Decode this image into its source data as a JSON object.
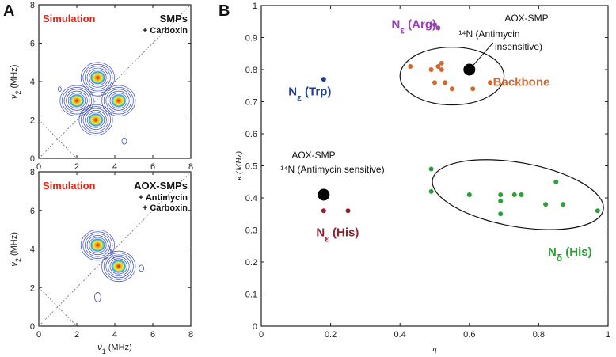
{
  "chart_data": [
    {
      "panel": "A",
      "type": "contour",
      "title": "Simulation",
      "sample": "SMPs",
      "treatment": [
        "+ Carboxin"
      ],
      "xlabel": "ν1 (MHz)",
      "ylabel": "ν2 (MHz)",
      "xlim": [
        0,
        8
      ],
      "ylim": [
        0,
        8
      ],
      "xticks": [
        0,
        2,
        4,
        6,
        8
      ],
      "yticks": [
        0,
        2,
        4,
        6,
        8
      ],
      "peaks": [
        {
          "x": 3.1,
          "y": 4.2
        },
        {
          "x": 2.0,
          "y": 3.0
        },
        {
          "x": 4.2,
          "y": 3.0
        },
        {
          "x": 3.0,
          "y": 2.0
        }
      ]
    },
    {
      "panel": "A",
      "type": "contour",
      "title": "Simulation",
      "sample": "AOX-SMPs",
      "treatment": [
        "+ Antimycin",
        "+ Carboxin"
      ],
      "xlabel": "ν1 (MHz)",
      "ylabel": "ν2 (MHz)",
      "xlim": [
        0,
        8
      ],
      "ylim": [
        0,
        8
      ],
      "xticks": [
        0,
        2,
        4,
        6,
        8
      ],
      "yticks": [
        0,
        2,
        4,
        6,
        8
      ],
      "peaks": [
        {
          "x": 3.1,
          "y": 4.2
        },
        {
          "x": 4.2,
          "y": 3.1
        }
      ]
    },
    {
      "panel": "B",
      "type": "scatter",
      "xlabel": "η",
      "ylabel": "κ (MHz)",
      "xlim": [
        0,
        1
      ],
      "ylim": [
        0,
        1
      ],
      "xticks": [
        0,
        0.2,
        0.4,
        0.6,
        0.8,
        1
      ],
      "yticks": [
        0,
        0.1,
        0.2,
        0.3,
        0.4,
        0.5,
        0.6,
        0.7,
        0.8,
        0.9,
        1
      ],
      "series": [
        {
          "name": "Nε (Arg)",
          "color": "#9b3fb5",
          "points": [
            [
              0.5,
              0.94
            ],
            [
              0.51,
              0.93
            ]
          ]
        },
        {
          "name": "Nε (Trp)",
          "color": "#1f3f95",
          "points": [
            [
              0.18,
              0.77
            ]
          ]
        },
        {
          "name": "Backbone",
          "color": "#d2682e",
          "points": [
            [
              0.43,
              0.81
            ],
            [
              0.49,
              0.8
            ],
            [
              0.51,
              0.81
            ],
            [
              0.52,
              0.82
            ],
            [
              0.52,
              0.8
            ],
            [
              0.5,
              0.76
            ],
            [
              0.53,
              0.76
            ],
            [
              0.55,
              0.74
            ],
            [
              0.61,
              0.74
            ],
            [
              0.66,
              0.76
            ]
          ]
        },
        {
          "name": "Nδ (His)",
          "color": "#2e9e3a",
          "points": [
            [
              0.49,
              0.49
            ],
            [
              0.49,
              0.42
            ],
            [
              0.6,
              0.41
            ],
            [
              0.69,
              0.41
            ],
            [
              0.69,
              0.39
            ],
            [
              0.69,
              0.35
            ],
            [
              0.73,
              0.41
            ],
            [
              0.75,
              0.41
            ],
            [
              0.82,
              0.38
            ],
            [
              0.85,
              0.45
            ],
            [
              0.87,
              0.38
            ],
            [
              0.97,
              0.36
            ]
          ]
        },
        {
          "name": "Nε (His)",
          "color": "#8e2231",
          "points": [
            [
              0.18,
              0.36
            ],
            [
              0.25,
              0.36
            ]
          ]
        },
        {
          "name": "AOX-SMP",
          "color": "#000000",
          "points": [
            [
              0.6,
              0.8
            ],
            [
              0.18,
              0.41
            ]
          ]
        }
      ],
      "ellipses": [
        {
          "label": "Backbone",
          "cx": 0.55,
          "cy": 0.78,
          "rx": 0.15,
          "ry": 0.09
        },
        {
          "label": "Nδ (His)",
          "cx": 0.74,
          "cy": 0.41,
          "rx": 0.25,
          "ry": 0.1,
          "rotation_deg": 10
        }
      ],
      "group_labels": [
        {
          "series": 0,
          "main": "N",
          "sub": "ε",
          "tail": " (Arg)",
          "x": 0.44,
          "y": 0.93
        },
        {
          "series": 1,
          "main": "N",
          "sub": "ε",
          "tail": " (Trp)",
          "x": 0.14,
          "y": 0.72
        },
        {
          "series": 2,
          "main": "Backbone",
          "sub": "",
          "tail": "",
          "x": 0.75,
          "y": 0.75
        },
        {
          "series": 3,
          "main": "N",
          "sub": "δ",
          "tail": " (His)",
          "x": 0.89,
          "y": 0.22
        },
        {
          "series": 4,
          "main": "N",
          "sub": "ε",
          "tail": " (His)",
          "x": 0.22,
          "y": 0.28
        }
      ],
      "annotations": [
        {
          "lines": [
            "AOX-SMP",
            "¹⁴N (Antimycin",
            "insensitive)"
          ],
          "point": [
            0.6,
            0.8
          ]
        },
        {
          "lines": [
            "AOX-SMP",
            "¹⁴N (Antimycin sensitive)"
          ],
          "point": [
            0.18,
            0.41
          ]
        }
      ]
    }
  ],
  "panel_labels": [
    "A",
    "B"
  ]
}
